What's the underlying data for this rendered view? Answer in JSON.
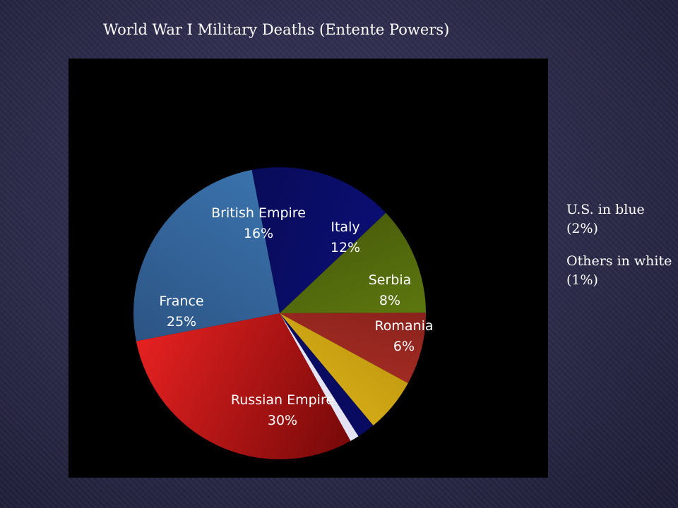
{
  "slide": {
    "title": "World War I Military Deaths (Entente Powers)",
    "notes": [
      "U.S. in  blue (2%)",
      "Others in white (1%)"
    ]
  },
  "colors": {
    "background": "#2c2b4a",
    "panel": "#000000",
    "text": "#ffffff"
  },
  "chart_data": {
    "type": "pie",
    "title": "",
    "slices": [
      {
        "name": "British Empire",
        "value": 16,
        "label": "16%",
        "color_light": "#0d1080",
        "color_dark": "#070a4a"
      },
      {
        "name": "Italy",
        "value": 12,
        "label": "12%",
        "color_light": "#6c8c14",
        "color_dark": "#3c4a06"
      },
      {
        "name": "Serbia",
        "value": 8,
        "label": "8%",
        "color_light": "#c0392b",
        "color_dark": "#6a1414"
      },
      {
        "name": "Romania",
        "value": 6,
        "label": "6%",
        "color_light": "#f0c41c",
        "color_dark": "#a8820a"
      },
      {
        "name": "U.S.",
        "value": 2,
        "label": "",
        "color_light": "#0a0e70",
        "color_dark": "#050850"
      },
      {
        "name": "Others",
        "value": 1,
        "label": "",
        "color_light": "#ffffff",
        "color_dark": "#c8c8e8"
      },
      {
        "name": "Russian Empire",
        "value": 30,
        "label": "30%",
        "color_light": "#f42424",
        "color_dark": "#6a0606"
      },
      {
        "name": "France",
        "value": 25,
        "label": "25%",
        "color_light": "#3c78b4",
        "color_dark": "#2a4e7c"
      }
    ]
  }
}
